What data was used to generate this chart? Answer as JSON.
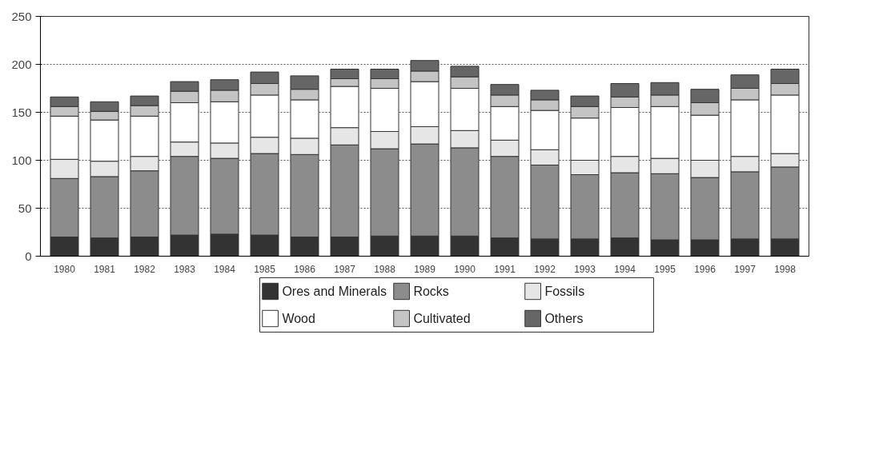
{
  "chart_data": {
    "type": "bar",
    "stacked": true,
    "categories": [
      "1980",
      "1981",
      "1982",
      "1983",
      "1984",
      "1985",
      "1986",
      "1987",
      "1988",
      "1989",
      "1990",
      "1991",
      "1992",
      "1993",
      "1994",
      "1995",
      "1996",
      "1997",
      "1998"
    ],
    "series": [
      {
        "name": "Ores and Minerals",
        "color": "#333333",
        "values": [
          20,
          19,
          20,
          22,
          23,
          22,
          20,
          20,
          21,
          21,
          21,
          19,
          18,
          18,
          19,
          17,
          17,
          18,
          18
        ]
      },
      {
        "name": "Rocks",
        "color": "#8c8c8c",
        "values": [
          61,
          64,
          69,
          82,
          79,
          85,
          86,
          96,
          91,
          96,
          92,
          85,
          77,
          67,
          68,
          69,
          65,
          70,
          75
        ]
      },
      {
        "name": "Fossils",
        "color": "#e6e6e6",
        "values": [
          20,
          16,
          15,
          15,
          16,
          17,
          17,
          18,
          18,
          18,
          18,
          17,
          16,
          15,
          17,
          16,
          18,
          16,
          14
        ]
      },
      {
        "name": "Wood",
        "color": "#ffffff",
        "values": [
          45,
          43,
          42,
          41,
          43,
          44,
          40,
          43,
          45,
          47,
          44,
          35,
          41,
          44,
          51,
          54,
          47,
          59,
          61
        ]
      },
      {
        "name": "Cultivated",
        "color": "#c4c4c4",
        "values": [
          10,
          9,
          11,
          12,
          12,
          12,
          11,
          8,
          10,
          11,
          12,
          12,
          11,
          12,
          11,
          12,
          13,
          12,
          12
        ]
      },
      {
        "name": "Others",
        "color": "#666666",
        "values": [
          10,
          10,
          10,
          10,
          11,
          12,
          14,
          10,
          10,
          11,
          11,
          11,
          10,
          11,
          14,
          13,
          14,
          14,
          15
        ]
      }
    ],
    "ylim": [
      0,
      250
    ],
    "yticks": [
      0,
      50,
      100,
      150,
      200,
      250
    ],
    "grid": "y",
    "legend": "bottom"
  }
}
